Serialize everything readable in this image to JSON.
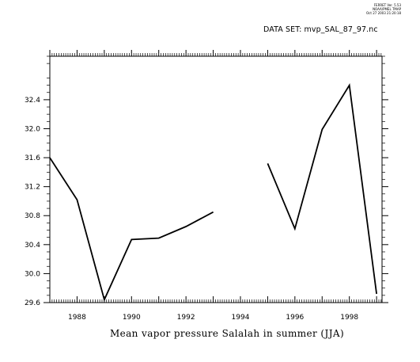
{
  "header": {
    "ferret_info": [
      "FERRET Ver. 5.53",
      "NOAA/PMEL TMAP",
      "Oct 27 2003 21:20:18"
    ],
    "dataset_label": "DATA SET: mvp_SAL_87_97.nc"
  },
  "chart_data": {
    "type": "line",
    "title": "",
    "xlabel": "Mean vapor pressure Salalah in summer (JJA)",
    "ylabel": "",
    "xlim": [
      1987,
      1999.2
    ],
    "ylim": [
      29.6,
      33.0
    ],
    "x_ticks": [
      1988,
      1990,
      1992,
      1994,
      1996,
      1998
    ],
    "x_tick_labels": [
      "1988",
      "1990",
      "1992",
      "1994",
      "1996",
      "1998"
    ],
    "y_ticks": [
      29.6,
      30.0,
      30.4,
      30.8,
      31.2,
      31.6,
      32.0,
      32.4
    ],
    "y_tick_labels": [
      "29.6",
      "30.0",
      "30.4",
      "30.8",
      "31.2",
      "31.6",
      "32.0",
      "32.4"
    ],
    "grid": false,
    "color": "#000000",
    "series": [
      {
        "segments": [
          [
            [
              1987.0,
              31.6
            ],
            [
              1988.0,
              31.02
            ],
            [
              1989.0,
              29.64
            ],
            [
              1990.0,
              30.47
            ],
            [
              1991.0,
              30.49
            ],
            [
              1992.0,
              30.65
            ],
            [
              1993.0,
              30.85
            ]
          ],
          [
            [
              1995.0,
              31.52
            ],
            [
              1996.0,
              30.62
            ],
            [
              1997.0,
              31.99
            ],
            [
              1998.0,
              32.6
            ],
            [
              1999.0,
              29.72
            ]
          ]
        ]
      }
    ]
  }
}
